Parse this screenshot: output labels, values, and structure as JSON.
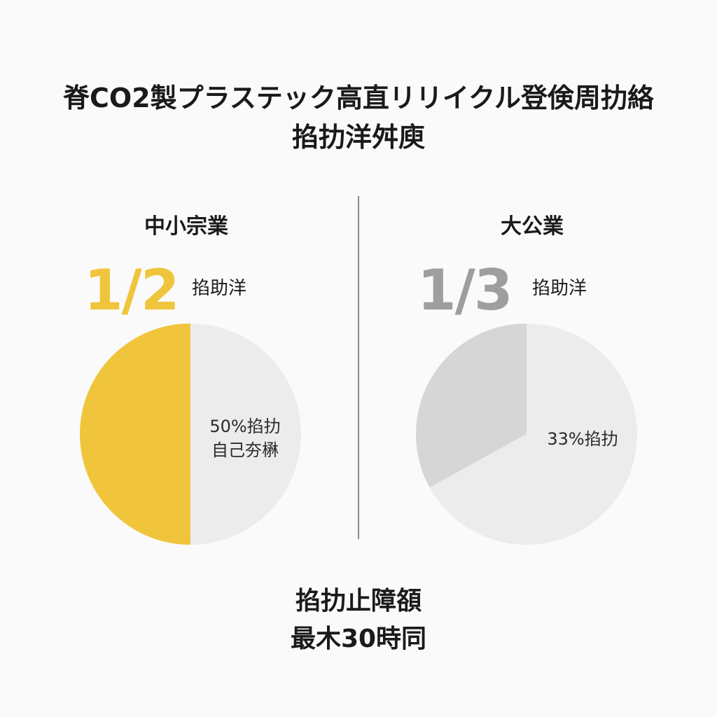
{
  "colors": {
    "accent_yellow": "#f0c53c",
    "accent_gray": "#9e9e9e",
    "slice_light": "#ececec",
    "slice_gray": "#d6d6d6",
    "text": "#1a1a1a",
    "divider": "#8a8a8a"
  },
  "chart_data": [
    {
      "type": "pie",
      "title": "中小宗業",
      "fraction": "1/2",
      "fraction_label": "掐助洋",
      "slices": [
        {
          "value": 50,
          "color": "#f0c53c"
        },
        {
          "value": 50,
          "color": "#ececec"
        }
      ],
      "slice_label_line1": "50%掐扐",
      "slice_label_line2": "自己夯楙"
    },
    {
      "type": "pie",
      "title": "大公業",
      "fraction": "1/3",
      "fraction_label": "掐助洋",
      "slices": [
        {
          "value": 33,
          "color": "#d6d6d6"
        },
        {
          "value": 67,
          "color": "#ececec"
        }
      ],
      "slice_label_line1": "33%掐扐"
    }
  ],
  "header": {
    "title_line1": "脊CO2製プラステック高直リリイクル登倹周扐絡",
    "title_line2": "掐扐洋舛庾"
  },
  "footer": {
    "line1": "掐扐止障頟",
    "line2": "最木30時同"
  }
}
